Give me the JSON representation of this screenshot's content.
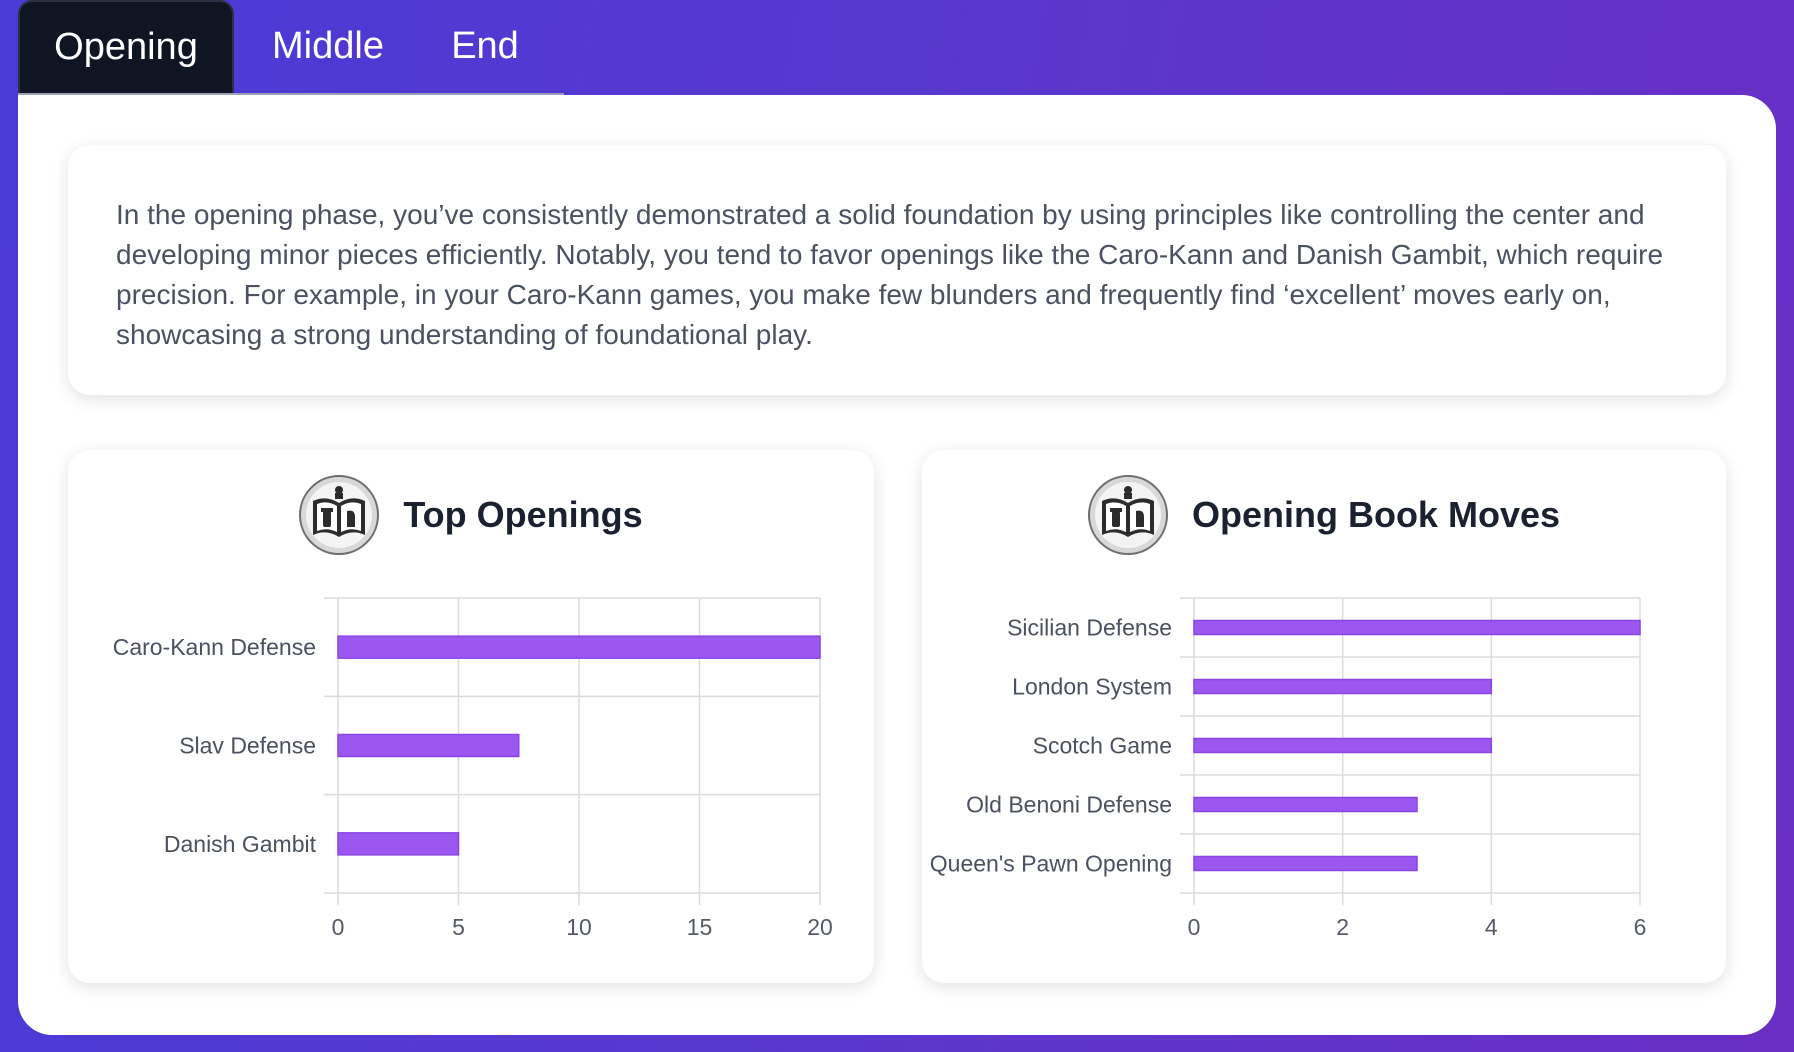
{
  "tabs": [
    {
      "label": "Opening",
      "active": true
    },
    {
      "label": "Middle",
      "active": false
    },
    {
      "label": "End",
      "active": false
    }
  ],
  "summary": {
    "text": "In the opening phase, you’ve consistently demonstrated a solid foundation by using principles like controlling the center and developing minor pieces efficiently. Notably, you tend to favor openings like the Caro-Kann and Danish Gambit, which require precision. For example, in your Caro-Kann games, you make few blunders and frequently find ‘excellent’ moves early on, showcasing a strong understanding of foundational play."
  },
  "cards": [
    {
      "title": "Top Openings",
      "icon": "chess-book-icon"
    },
    {
      "title": "Opening Book Moves",
      "icon": "chess-book-icon"
    }
  ],
  "colors": {
    "bar_fill": "#9b57f0",
    "bar_stroke": "#8b45e6",
    "gradient_start": "#4a3ad6",
    "gradient_end": "#6a2ec4",
    "active_tab": "#0f1523"
  },
  "chart_data": [
    {
      "type": "bar",
      "orientation": "horizontal",
      "categories": [
        "Caro-Kann Defense",
        "Slav Defense",
        "Danish Gambit"
      ],
      "values": [
        20,
        7.5,
        5
      ],
      "xlim": [
        0,
        20
      ],
      "xticks": [
        0,
        5,
        10,
        15,
        20
      ],
      "grid": true
    },
    {
      "type": "bar",
      "orientation": "horizontal",
      "categories": [
        "Sicilian Defense",
        "London System",
        "Scotch Game",
        "Old Benoni Defense",
        "Queen's Pawn Opening"
      ],
      "values": [
        6,
        4,
        4,
        3,
        3
      ],
      "xlim": [
        0,
        6
      ],
      "xticks": [
        0,
        2,
        4,
        6
      ],
      "grid": true
    }
  ]
}
